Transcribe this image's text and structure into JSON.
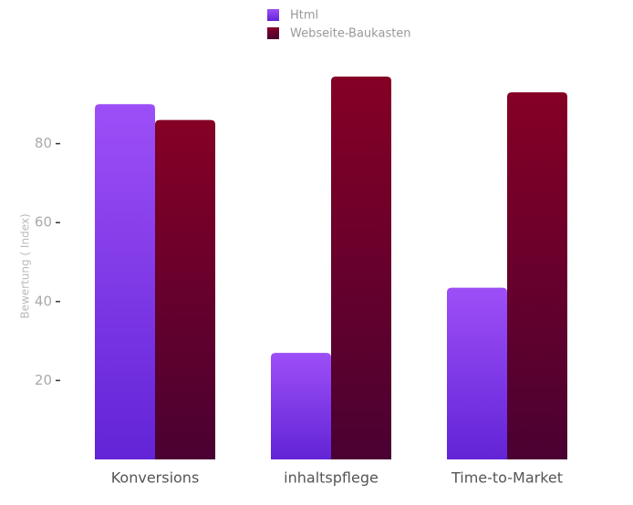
{
  "chart_data": {
    "type": "bar",
    "y_label": "Bewertung ( Index)",
    "categories": [
      "Konversions",
      "inhaltspflege",
      "Time-to-Market"
    ],
    "series": [
      {
        "name": "Html",
        "color": "#9d4ff7",
        "values": [
          90,
          27,
          43.5
        ]
      },
      {
        "name": "Webseite-Baukasten",
        "color": "#850025",
        "values": [
          86,
          97,
          93
        ]
      }
    ],
    "ylim": [
      0,
      100
    ],
    "yticks": [
      20,
      40,
      60,
      80
    ]
  }
}
